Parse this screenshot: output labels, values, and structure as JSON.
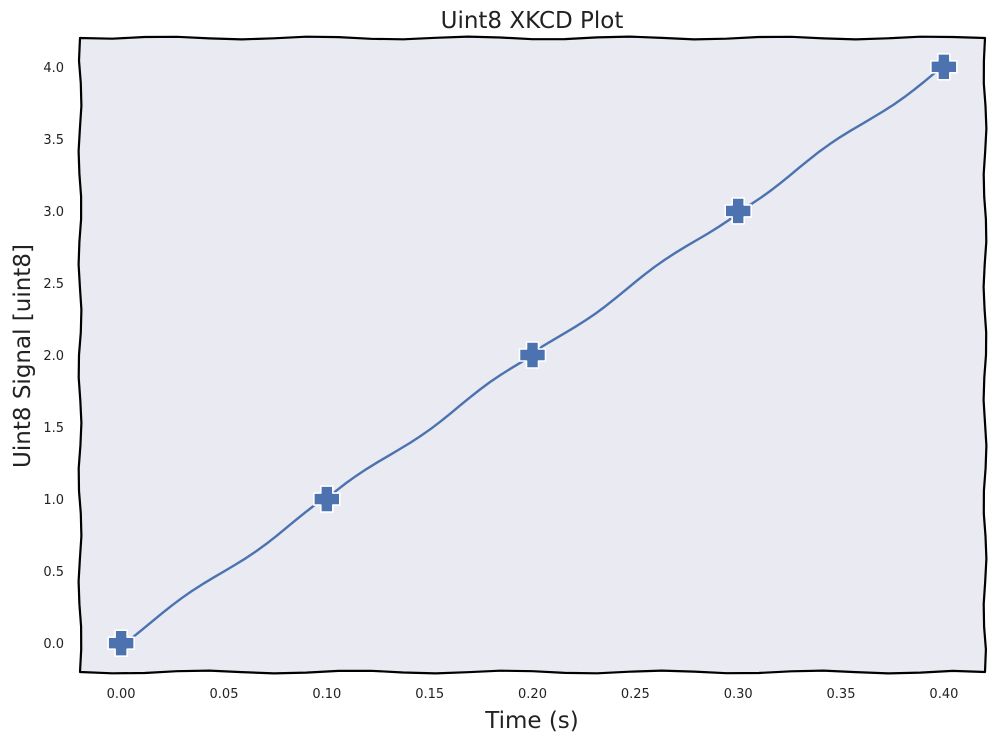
{
  "chart_data": {
    "type": "line",
    "title": "Uint8 XKCD Plot",
    "xlabel": "Time (s)",
    "ylabel": "Uint8 Signal [uint8]",
    "x": [
      0.0,
      0.1,
      0.2,
      0.3,
      0.4
    ],
    "series": [
      {
        "values": [
          0,
          1,
          2,
          3,
          4
        ],
        "color": "#4c72b0",
        "marker": "plus"
      }
    ],
    "xlim": [
      -0.02,
      0.42
    ],
    "ylim": [
      -0.2,
      4.2
    ],
    "xticks": [
      "0.00",
      "0.05",
      "0.10",
      "0.15",
      "0.20",
      "0.25",
      "0.30",
      "0.35",
      "0.40"
    ],
    "yticks": [
      "0.0",
      "0.5",
      "1.0",
      "1.5",
      "2.0",
      "2.5",
      "3.0",
      "3.5",
      "4.0"
    ],
    "style": "xkcd",
    "background": "#eaeaf2",
    "grid": false,
    "legend": "none"
  }
}
